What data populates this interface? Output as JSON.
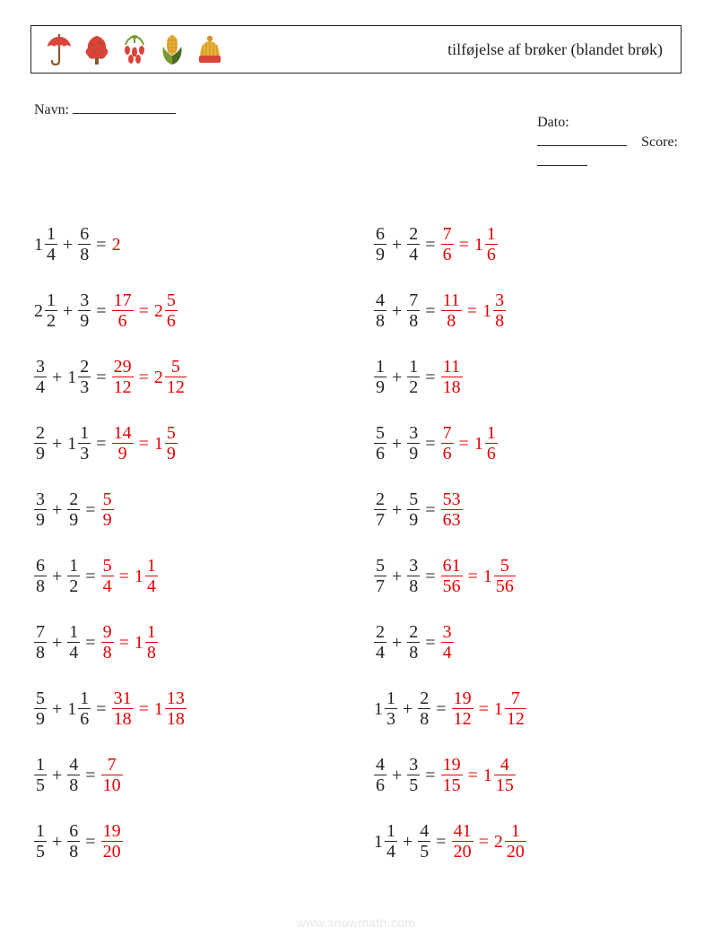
{
  "header": {
    "title": "tilføjelse af brøker (blandet brøk)",
    "icons": [
      "umbrella",
      "tree",
      "berries",
      "corn",
      "beanie"
    ]
  },
  "labels": {
    "name": "Navn:",
    "date": "Dato:",
    "score": "Score:"
  },
  "operator": "+",
  "equals": "=",
  "colors": {
    "text": "#222222",
    "answer": "#e60000",
    "footer": "#e6e6e6",
    "icon_red": "#d9443a",
    "icon_brown": "#8a5a2b",
    "icon_orange": "#d98e2b",
    "icon_green": "#7a9a2e",
    "icon_yellow": "#e8b23a",
    "icon_darkgreen": "#4a6a1f"
  },
  "footer": "www.snowmath.com",
  "problems": {
    "left": [
      {
        "a": {
          "w": 1,
          "n": 1,
          "d": 4
        },
        "b": {
          "n": 6,
          "d": 8
        },
        "ans1": {
          "int": 2
        }
      },
      {
        "a": {
          "w": 2,
          "n": 1,
          "d": 2
        },
        "b": {
          "n": 3,
          "d": 9
        },
        "ans1": {
          "n": 17,
          "d": 6
        },
        "ans2": {
          "w": 2,
          "n": 5,
          "d": 6
        }
      },
      {
        "a": {
          "n": 3,
          "d": 4
        },
        "b": {
          "w": 1,
          "n": 2,
          "d": 3
        },
        "ans1": {
          "n": 29,
          "d": 12
        },
        "ans2": {
          "w": 2,
          "n": 5,
          "d": 12
        }
      },
      {
        "a": {
          "n": 2,
          "d": 9
        },
        "b": {
          "w": 1,
          "n": 1,
          "d": 3
        },
        "ans1": {
          "n": 14,
          "d": 9
        },
        "ans2": {
          "w": 1,
          "n": 5,
          "d": 9
        }
      },
      {
        "a": {
          "n": 3,
          "d": 9
        },
        "b": {
          "n": 2,
          "d": 9
        },
        "ans1": {
          "n": 5,
          "d": 9
        }
      },
      {
        "a": {
          "n": 6,
          "d": 8
        },
        "b": {
          "n": 1,
          "d": 2
        },
        "ans1": {
          "n": 5,
          "d": 4
        },
        "ans2": {
          "w": 1,
          "n": 1,
          "d": 4
        }
      },
      {
        "a": {
          "n": 7,
          "d": 8
        },
        "b": {
          "n": 1,
          "d": 4
        },
        "ans1": {
          "n": 9,
          "d": 8
        },
        "ans2": {
          "w": 1,
          "n": 1,
          "d": 8
        }
      },
      {
        "a": {
          "n": 5,
          "d": 9
        },
        "b": {
          "w": 1,
          "n": 1,
          "d": 6
        },
        "ans1": {
          "n": 31,
          "d": 18
        },
        "ans2": {
          "w": 1,
          "n": 13,
          "d": 18
        }
      },
      {
        "a": {
          "n": 1,
          "d": 5
        },
        "b": {
          "n": 4,
          "d": 8
        },
        "ans1": {
          "n": 7,
          "d": 10
        }
      },
      {
        "a": {
          "n": 1,
          "d": 5
        },
        "b": {
          "n": 6,
          "d": 8
        },
        "ans1": {
          "n": 19,
          "d": 20
        }
      }
    ],
    "right": [
      {
        "a": {
          "n": 6,
          "d": 9
        },
        "b": {
          "n": 2,
          "d": 4
        },
        "ans1": {
          "n": 7,
          "d": 6
        },
        "ans2": {
          "w": 1,
          "n": 1,
          "d": 6
        }
      },
      {
        "a": {
          "n": 4,
          "d": 8
        },
        "b": {
          "n": 7,
          "d": 8
        },
        "ans1": {
          "n": 11,
          "d": 8
        },
        "ans2": {
          "w": 1,
          "n": 3,
          "d": 8
        }
      },
      {
        "a": {
          "n": 1,
          "d": 9
        },
        "b": {
          "n": 1,
          "d": 2
        },
        "ans1": {
          "n": 11,
          "d": 18
        }
      },
      {
        "a": {
          "n": 5,
          "d": 6
        },
        "b": {
          "n": 3,
          "d": 9
        },
        "ans1": {
          "n": 7,
          "d": 6
        },
        "ans2": {
          "w": 1,
          "n": 1,
          "d": 6
        }
      },
      {
        "a": {
          "n": 2,
          "d": 7
        },
        "b": {
          "n": 5,
          "d": 9
        },
        "ans1": {
          "n": 53,
          "d": 63
        }
      },
      {
        "a": {
          "n": 5,
          "d": 7
        },
        "b": {
          "n": 3,
          "d": 8
        },
        "ans1": {
          "n": 61,
          "d": 56
        },
        "ans2": {
          "w": 1,
          "n": 5,
          "d": 56
        }
      },
      {
        "a": {
          "n": 2,
          "d": 4
        },
        "b": {
          "n": 2,
          "d": 8
        },
        "ans1": {
          "n": 3,
          "d": 4
        }
      },
      {
        "a": {
          "w": 1,
          "n": 1,
          "d": 3
        },
        "b": {
          "n": 2,
          "d": 8
        },
        "ans1": {
          "n": 19,
          "d": 12
        },
        "ans2": {
          "w": 1,
          "n": 7,
          "d": 12
        }
      },
      {
        "a": {
          "n": 4,
          "d": 6
        },
        "b": {
          "n": 3,
          "d": 5
        },
        "ans1": {
          "n": 19,
          "d": 15
        },
        "ans2": {
          "w": 1,
          "n": 4,
          "d": 15
        }
      },
      {
        "a": {
          "w": 1,
          "n": 1,
          "d": 4
        },
        "b": {
          "n": 4,
          "d": 5
        },
        "ans1": {
          "n": 41,
          "d": 20
        },
        "ans2": {
          "w": 2,
          "n": 1,
          "d": 20
        }
      }
    ]
  }
}
